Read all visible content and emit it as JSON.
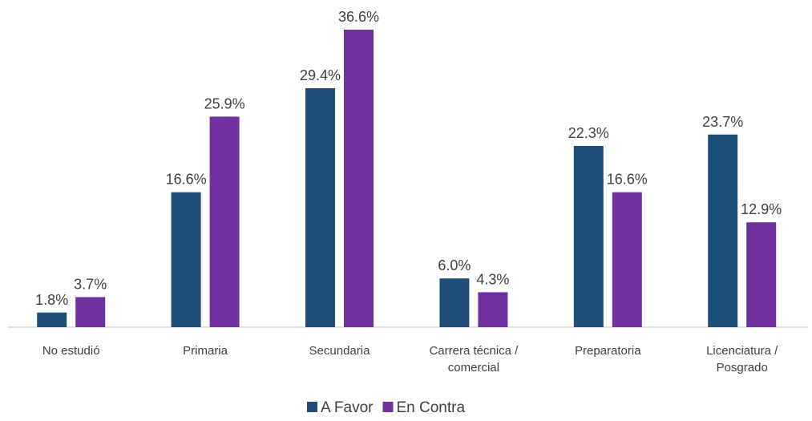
{
  "chart_data": {
    "type": "bar",
    "categories": [
      "No estudió",
      "Primaria",
      "Secundaria",
      "Carrera técnica / comercial",
      "Preparatoria",
      "Licenciatura / Posgrado"
    ],
    "series": [
      {
        "name": "A Favor",
        "color": "#1f4e79",
        "values": [
          1.8,
          16.6,
          29.4,
          6.0,
          22.3,
          23.7
        ],
        "value_labels": [
          "1.8%",
          "16.6%",
          "29.4%",
          "6.0%",
          "22.3%",
          "23.7%"
        ]
      },
      {
        "name": "En Contra",
        "color": "#7030a0",
        "values": [
          3.7,
          25.9,
          36.6,
          4.3,
          16.6,
          12.9
        ],
        "value_labels": [
          "3.7%",
          "25.9%",
          "36.6%",
          "4.3%",
          "16.6%",
          "12.9%"
        ]
      }
    ],
    "legend": "bottom"
  }
}
